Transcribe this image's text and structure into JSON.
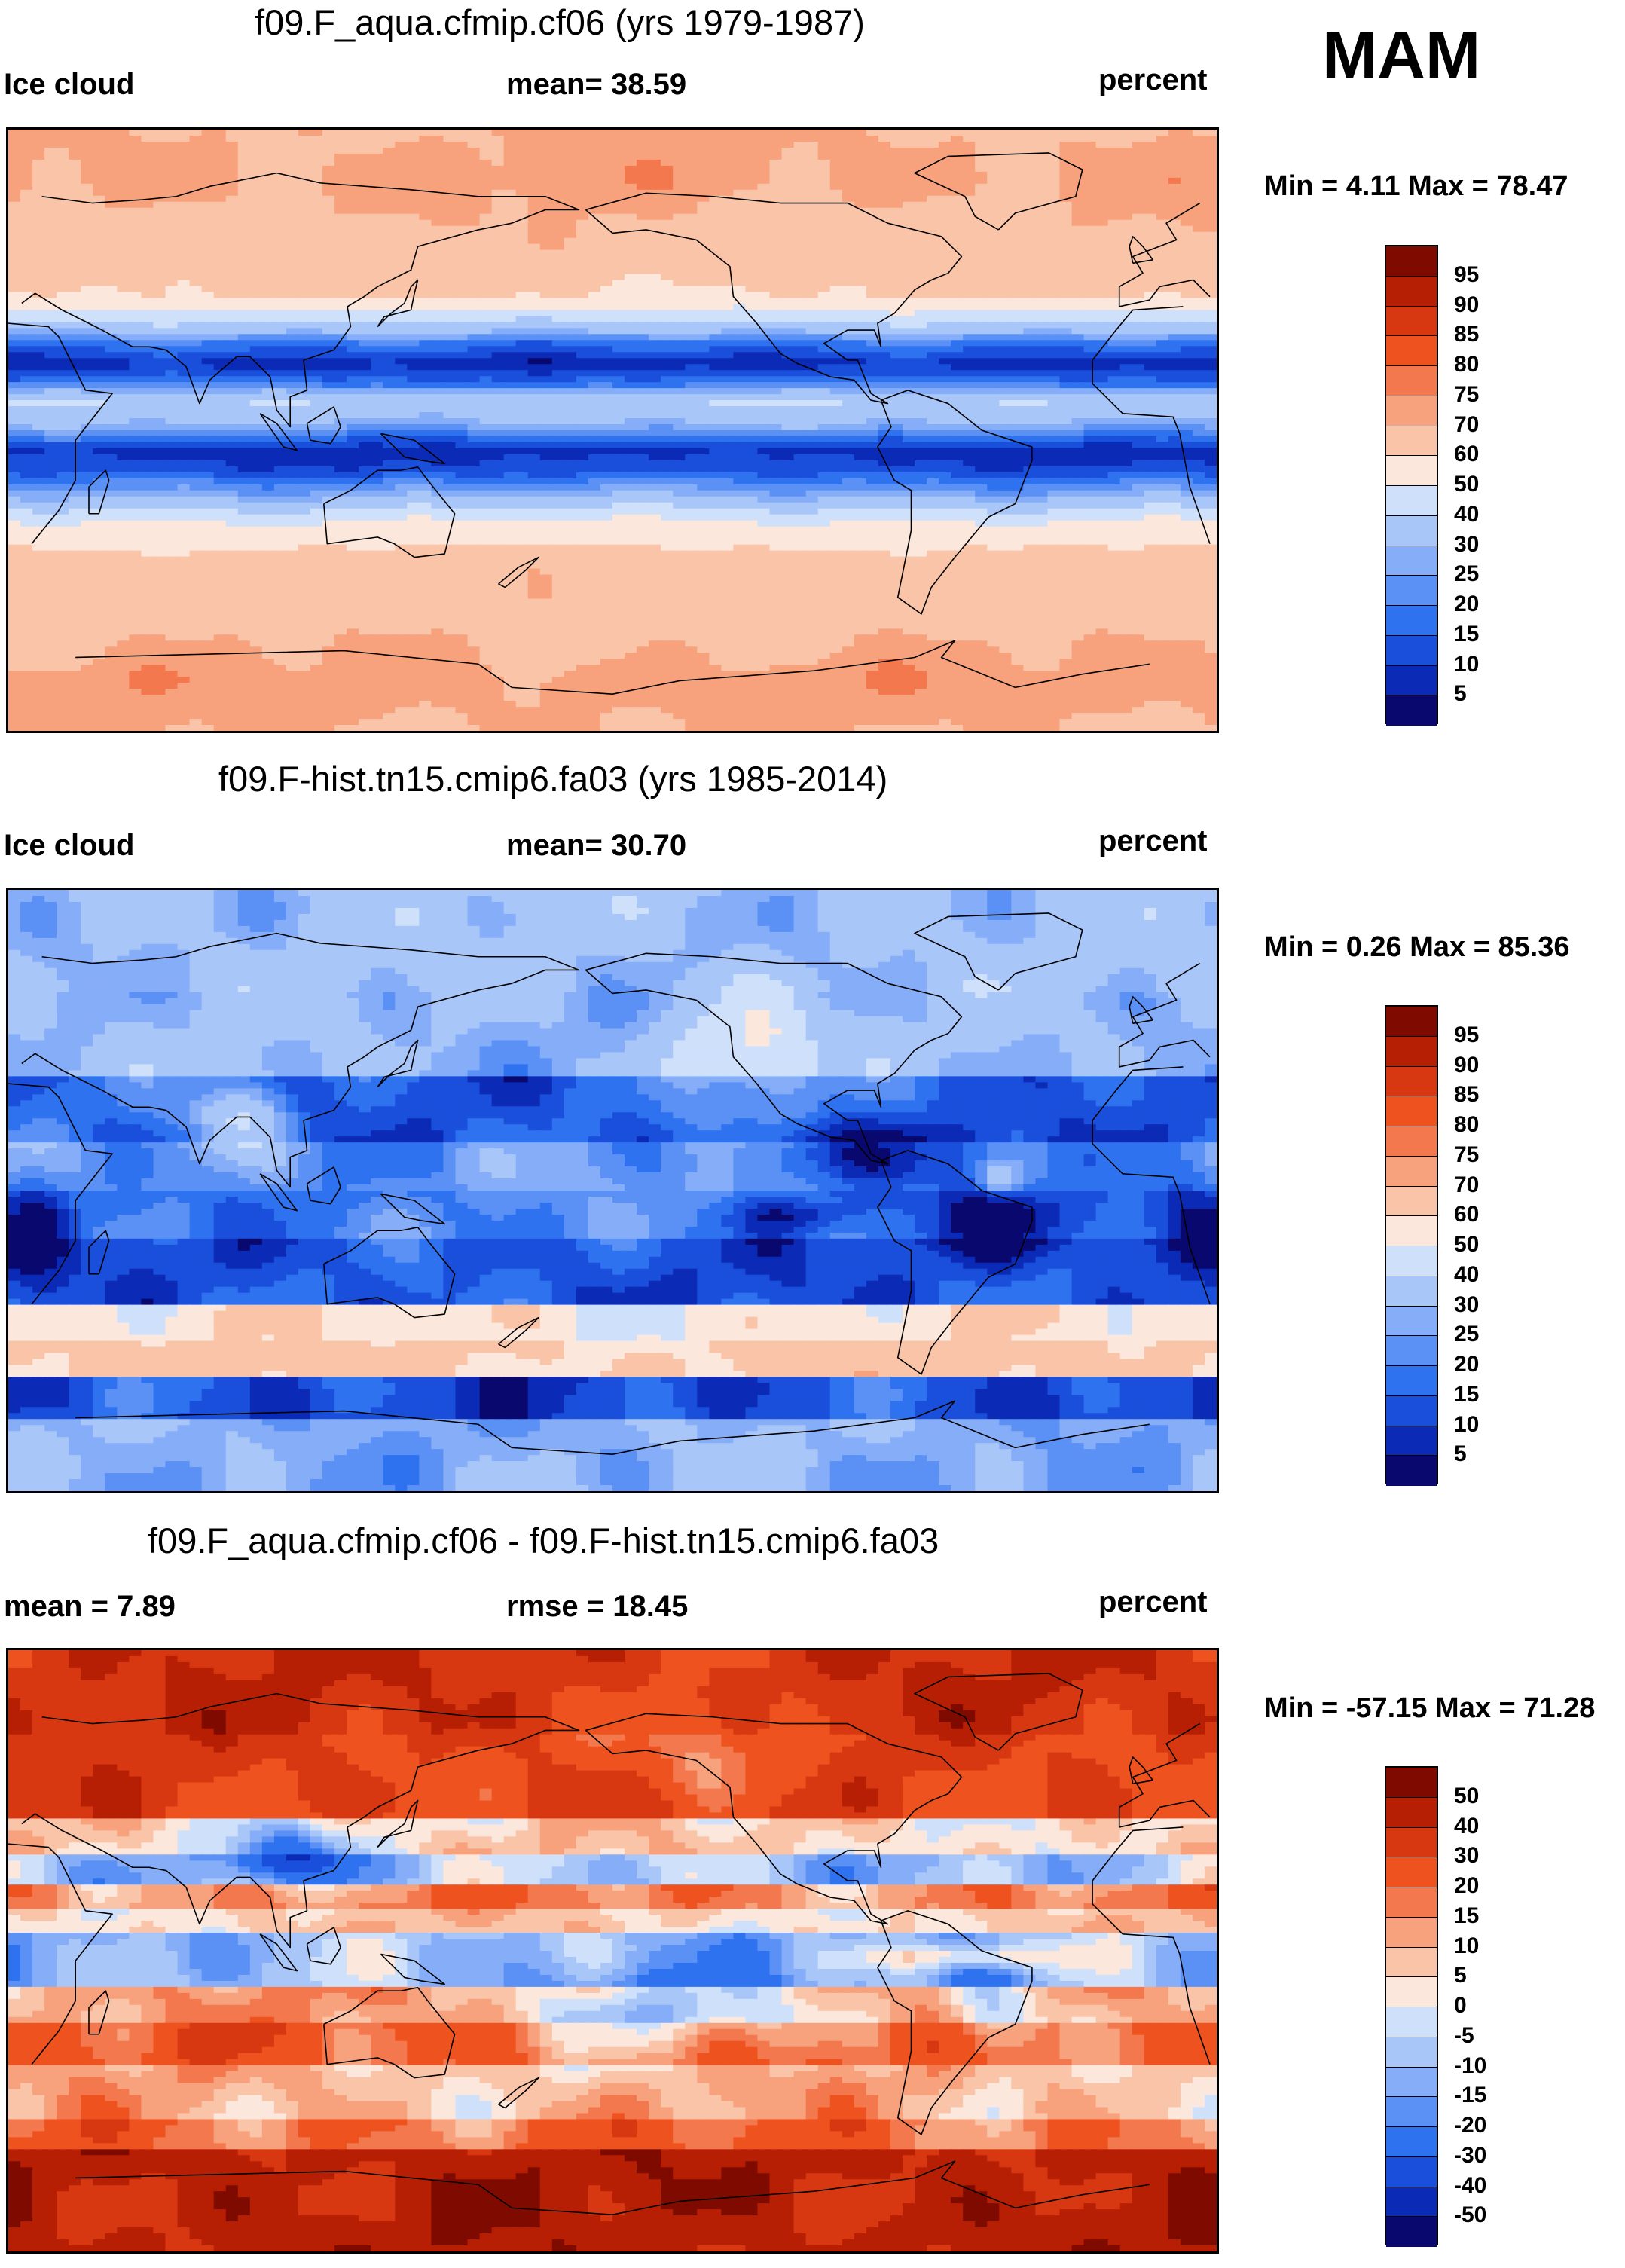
{
  "season": "MAM",
  "colors": {
    "seq": [
      "#08086e",
      "#0b2bb7",
      "#1a4fdc",
      "#2e72f0",
      "#5b90f5",
      "#86adf7",
      "#a9c6f9",
      "#cfe0fb",
      "#fbe7dc",
      "#f9c4a8",
      "#f7a27d",
      "#f4784e",
      "#ee521f",
      "#d83811",
      "#b71f04",
      "#7f0b00"
    ],
    "diff": [
      "#08086e",
      "#0b2bb7",
      "#1a4fdc",
      "#2e72f0",
      "#5b90f5",
      "#86adf7",
      "#a9c6f9",
      "#cfe0fb",
      "#fbe7dc",
      "#f9c4a8",
      "#f7a27d",
      "#f4784e",
      "#ee521f",
      "#d83811",
      "#b71f04",
      "#7f0b00"
    ]
  },
  "panels": [
    {
      "title": "f09.F_aqua.cfmip.cf06 (yrs 1979-1987)",
      "left_label": "Ice cloud",
      "center_label": "mean=  38.59",
      "units": "percent",
      "minmax": "Min =   4.11 Max =  78.47",
      "colorbar": {
        "labels": [
          "95",
          "90",
          "85",
          "80",
          "75",
          "70",
          "60",
          "50",
          "40",
          "30",
          "25",
          "20",
          "15",
          "10",
          "5"
        ]
      },
      "field_kind": "aqua",
      "lat_profile_percent": [
        {
          "lat": 90,
          "value": 70
        },
        {
          "lat": 75,
          "value": 72
        },
        {
          "lat": 55,
          "value": 67
        },
        {
          "lat": 40,
          "value": 60
        },
        {
          "lat": 33,
          "value": 42
        },
        {
          "lat": 26,
          "value": 18
        },
        {
          "lat": 20,
          "value": 7
        },
        {
          "lat": 14,
          "value": 18
        },
        {
          "lat": 9,
          "value": 40
        },
        {
          "lat": 2,
          "value": 30
        },
        {
          "lat": -6,
          "value": 8
        },
        {
          "lat": -12,
          "value": 12
        },
        {
          "lat": -20,
          "value": 30
        },
        {
          "lat": -27,
          "value": 50
        },
        {
          "lat": -40,
          "value": 66
        },
        {
          "lat": -60,
          "value": 68
        },
        {
          "lat": -75,
          "value": 73
        },
        {
          "lat": -90,
          "value": 70
        }
      ]
    },
    {
      "title": "f09.F-hist.tn15.cmip6.fa03 (yrs 1985-2014)",
      "left_label": "Ice cloud",
      "center_label": "mean=  30.70",
      "units": "percent",
      "minmax": "Min =   0.26 Max =  85.36",
      "colorbar": {
        "labels": [
          "95",
          "90",
          "85",
          "80",
          "75",
          "70",
          "60",
          "50",
          "40",
          "30",
          "25",
          "20",
          "15",
          "10",
          "5"
        ]
      },
      "field_kind": "hist"
    },
    {
      "title": "f09.F_aqua.cfmip.cf06 - f09.F-hist.tn15.cmip6.fa03",
      "left_label": "mean =   7.89",
      "center_label": "rmse =  18.45",
      "units": "percent",
      "minmax": "Min = -57.15 Max =  71.28",
      "colorbar": {
        "labels": [
          "50",
          "40",
          "30",
          "20",
          "15",
          "10",
          "5",
          "0",
          "-5",
          "-10",
          "-15",
          "-20",
          "-30",
          "-40",
          "-50"
        ]
      },
      "field_kind": "diff"
    }
  ]
}
